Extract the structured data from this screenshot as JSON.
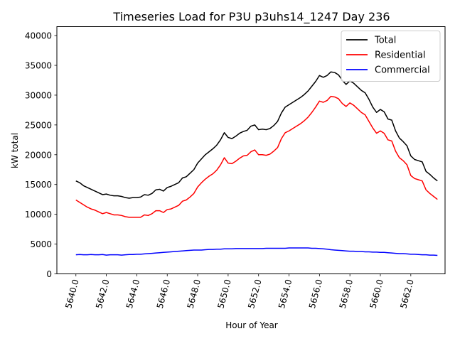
{
  "chart_data": {
    "type": "line",
    "title": "Timeseries Load for P3U p3uhs14_1247  Day 236",
    "xlabel": "Hour of Year",
    "ylabel": "kW total",
    "xlim": [
      5638.75,
      5664.25
    ],
    "ylim": [
      0,
      41500
    ],
    "xticks": [
      5640,
      5642,
      5644,
      5646,
      5648,
      5650,
      5652,
      5654,
      5656,
      5658,
      5660,
      5662
    ],
    "xtick_labels": [
      "5640.0",
      "5642.0",
      "5644.0",
      "5646.0",
      "5648.0",
      "5650.0",
      "5652.0",
      "5654.0",
      "5656.0",
      "5658.0",
      "5660.0",
      "5662.0"
    ],
    "yticks": [
      0,
      5000,
      10000,
      15000,
      20000,
      25000,
      30000,
      35000,
      40000
    ],
    "ytick_labels": [
      "0",
      "5000",
      "10000",
      "15000",
      "20000",
      "25000",
      "30000",
      "35000",
      "40000"
    ],
    "grid": false,
    "legend_position": "top-right",
    "x_start": 5640,
    "x_step": 0.25,
    "series": [
      {
        "name": "Total",
        "color": "#000000",
        "values": [
          15600,
          15300,
          14800,
          14500,
          14200,
          13900,
          13600,
          13300,
          13400,
          13200,
          13100,
          13100,
          13000,
          12800,
          12700,
          12800,
          12800,
          12900,
          13300,
          13200,
          13500,
          14100,
          14200,
          13900,
          14500,
          14700,
          15000,
          15300,
          16100,
          16300,
          16900,
          17500,
          18600,
          19300,
          20000,
          20500,
          21000,
          21600,
          22500,
          23700,
          22900,
          22700,
          23100,
          23600,
          23900,
          24100,
          24800,
          25000,
          24200,
          24300,
          24200,
          24400,
          24900,
          25600,
          27000,
          28000,
          28400,
          28800,
          29200,
          29600,
          30100,
          30700,
          31500,
          32300,
          33300,
          33000,
          33300,
          33900,
          33800,
          33400,
          32500,
          31800,
          32400,
          32000,
          31400,
          30800,
          30400,
          29300,
          28000,
          27100,
          27600,
          27200,
          26000,
          25800,
          24000,
          22800,
          22200,
          21500,
          19800,
          19200,
          19000,
          18800,
          17200,
          16700,
          16100,
          15600
        ]
      },
      {
        "name": "Residential",
        "color": "#ff0000",
        "values": [
          12400,
          12000,
          11600,
          11200,
          10900,
          10700,
          10400,
          10100,
          10300,
          10100,
          9900,
          9900,
          9800,
          9600,
          9500,
          9500,
          9500,
          9500,
          9900,
          9800,
          10100,
          10600,
          10600,
          10300,
          10800,
          10900,
          11200,
          11500,
          12200,
          12400,
          12900,
          13500,
          14600,
          15300,
          15900,
          16400,
          16800,
          17400,
          18300,
          19500,
          18600,
          18500,
          18900,
          19400,
          19800,
          19900,
          20500,
          20800,
          20000,
          20000,
          19900,
          20100,
          20600,
          21200,
          22700,
          23700,
          24000,
          24400,
          24800,
          25200,
          25700,
          26300,
          27100,
          28000,
          29000,
          28800,
          29100,
          29800,
          29700,
          29400,
          28600,
          28100,
          28700,
          28300,
          27700,
          27100,
          26700,
          25600,
          24500,
          23600,
          24000,
          23600,
          22500,
          22300,
          20600,
          19500,
          19000,
          18300,
          16500,
          16000,
          15800,
          15600,
          14100,
          13500,
          13000,
          12500
        ]
      },
      {
        "name": "Commercial",
        "color": "#0000ff",
        "values": [
          3200,
          3250,
          3200,
          3200,
          3250,
          3200,
          3200,
          3250,
          3150,
          3200,
          3200,
          3200,
          3150,
          3200,
          3250,
          3250,
          3300,
          3300,
          3350,
          3400,
          3450,
          3500,
          3550,
          3600,
          3650,
          3700,
          3750,
          3800,
          3850,
          3900,
          3950,
          4000,
          4000,
          4000,
          4050,
          4100,
          4100,
          4150,
          4150,
          4200,
          4200,
          4200,
          4250,
          4250,
          4250,
          4250,
          4250,
          4250,
          4250,
          4250,
          4300,
          4300,
          4300,
          4300,
          4300,
          4300,
          4350,
          4350,
          4350,
          4350,
          4350,
          4350,
          4300,
          4300,
          4250,
          4200,
          4150,
          4050,
          4000,
          3950,
          3900,
          3850,
          3800,
          3800,
          3750,
          3750,
          3700,
          3700,
          3650,
          3650,
          3600,
          3600,
          3550,
          3500,
          3450,
          3400,
          3400,
          3350,
          3300,
          3300,
          3250,
          3200,
          3200,
          3150,
          3150,
          3100
        ]
      }
    ]
  }
}
